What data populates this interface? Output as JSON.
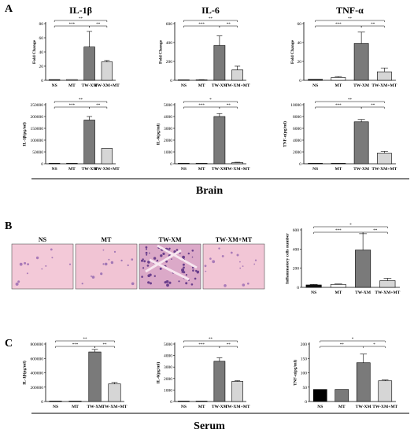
{
  "panels": {
    "A": "A",
    "B": "B",
    "C": "C"
  },
  "group_labels": {
    "brain": "Brain",
    "serum": "Serum"
  },
  "colors": {
    "NS": "#111111",
    "MT": "#ffffff",
    "TW-XM": "#7a7a7a",
    "TW-XM+MT": "#d6d6d6",
    "axis": "#000000"
  },
  "histology": {
    "labels": [
      "NS",
      "MT",
      "TW-XM",
      "TW-XM+MT"
    ],
    "scale_bar_note": "pink H&E stained tissue sections"
  },
  "chart_data": [
    {
      "id": "a-il1b-fold",
      "type": "bar",
      "title": "IL-1β",
      "ylabel": "Fold Change",
      "categories": [
        "NS",
        "MT",
        "TW-XM",
        "TW-XM+MT"
      ],
      "values": [
        1,
        1,
        47,
        26
      ],
      "errors": [
        0,
        0,
        22,
        2
      ],
      "ylim": [
        0,
        80
      ],
      "yticks": [
        "0",
        "20",
        "40",
        "60",
        "80"
      ],
      "ytick_values": [
        0,
        20,
        40,
        60,
        80
      ],
      "brackets": [
        {
          "from": 0,
          "to": 2,
          "label": "***"
        },
        {
          "from": 2,
          "to": 3,
          "label": "**"
        },
        {
          "from": 0,
          "to": 3,
          "label": "**"
        }
      ]
    },
    {
      "id": "a-il6-fold",
      "type": "bar",
      "title": "IL-6",
      "ylabel": "Fold Change",
      "categories": [
        "NS",
        "MT",
        "TW-XM",
        "TW-XM+MT"
      ],
      "values": [
        1,
        5,
        370,
        110
      ],
      "errors": [
        0,
        2,
        100,
        40
      ],
      "ylim": [
        0,
        600
      ],
      "yticks": [
        "0",
        "200",
        "400",
        "600"
      ],
      "ytick_values": [
        0,
        200,
        400,
        600
      ],
      "brackets": [
        {
          "from": 0,
          "to": 2,
          "label": "***"
        },
        {
          "from": 2,
          "to": 3,
          "label": "**"
        },
        {
          "from": 0,
          "to": 3,
          "label": "**"
        }
      ]
    },
    {
      "id": "a-tnfa-fold",
      "type": "bar",
      "title": "TNF-α",
      "ylabel": "Fold Change",
      "categories": [
        "NS",
        "MT",
        "TW-XM",
        "TW-XM+MT"
      ],
      "values": [
        1,
        3,
        39,
        9
      ],
      "errors": [
        0,
        1,
        12,
        4
      ],
      "ylim": [
        0,
        60
      ],
      "yticks": [
        "0",
        "20",
        "40",
        "60"
      ],
      "ytick_values": [
        0,
        20,
        40,
        60
      ],
      "brackets": [
        {
          "from": 0,
          "to": 2,
          "label": "***"
        },
        {
          "from": 2,
          "to": 3,
          "label": "**"
        },
        {
          "from": 0,
          "to": 3,
          "label": "**"
        }
      ]
    },
    {
      "id": "a-il1b-pg",
      "type": "bar",
      "ylabel": "IL-1β(pg/ml)",
      "categories": [
        "NS",
        "MT",
        "TW-XM",
        "TW-XM+MT"
      ],
      "values": [
        0,
        0,
        185000,
        65000
      ],
      "errors": [
        0,
        0,
        15000,
        0
      ],
      "ylim": [
        0,
        250000
      ],
      "yticks": [
        "0",
        "50000",
        "100000",
        "150000",
        "200000",
        "250000"
      ],
      "ytick_values": [
        0,
        50000,
        100000,
        150000,
        200000,
        250000
      ],
      "brackets": [
        {
          "from": 0,
          "to": 2,
          "label": "***"
        },
        {
          "from": 2,
          "to": 3,
          "label": "**"
        },
        {
          "from": 0,
          "to": 3,
          "label": "**"
        }
      ]
    },
    {
      "id": "a-il6-pg",
      "type": "bar",
      "ylabel": "IL-6(pg/ml)",
      "categories": [
        "NS",
        "MT",
        "TW-XM",
        "TW-XM+MT"
      ],
      "values": [
        0,
        0,
        4000,
        100
      ],
      "errors": [
        0,
        0,
        250,
        30
      ],
      "ylim": [
        0,
        5000
      ],
      "yticks": [
        "0",
        "1000",
        "2000",
        "3000",
        "4000",
        "5000"
      ],
      "ytick_values": [
        0,
        1000,
        2000,
        3000,
        4000,
        5000
      ],
      "brackets": [
        {
          "from": 0,
          "to": 2,
          "label": "***"
        },
        {
          "from": 2,
          "to": 3,
          "label": "**"
        },
        {
          "from": 0,
          "to": 3,
          "label": "*"
        }
      ]
    },
    {
      "id": "a-tnfa-pg",
      "type": "bar",
      "ylabel": "TNF-α(pg/ml)",
      "categories": [
        "NS",
        "MT",
        "TW-XM",
        "TW-XM+MT"
      ],
      "values": [
        0,
        0,
        7100,
        1800
      ],
      "errors": [
        0,
        0,
        400,
        300
      ],
      "ylim": [
        0,
        10000
      ],
      "yticks": [
        "0",
        "2000",
        "4000",
        "6000",
        "8000",
        "10000"
      ],
      "ytick_values": [
        0,
        2000,
        4000,
        6000,
        8000,
        10000
      ],
      "brackets": [
        {
          "from": 0,
          "to": 2,
          "label": "***"
        },
        {
          "from": 2,
          "to": 3,
          "label": "**"
        },
        {
          "from": 0,
          "to": 3,
          "label": "**"
        }
      ]
    },
    {
      "id": "b-cells",
      "type": "bar",
      "ylabel": "Inflammatory cells number",
      "categories": [
        "NS",
        "MT",
        "TW-XM",
        "TW-XM+MT"
      ],
      "values": [
        25,
        30,
        390,
        70
      ],
      "errors": [
        5,
        5,
        170,
        25
      ],
      "ylim": [
        0,
        600
      ],
      "yticks": [
        "0",
        "200",
        "400",
        "600"
      ],
      "ytick_values": [
        0,
        200,
        400,
        600
      ],
      "brackets": [
        {
          "from": 0,
          "to": 2,
          "label": "***"
        },
        {
          "from": 2,
          "to": 3,
          "label": "**"
        },
        {
          "from": 0,
          "to": 3,
          "label": "*"
        }
      ]
    },
    {
      "id": "c-il1b-pg",
      "type": "bar",
      "ylabel": "IL-1β(pg/ml)",
      "categories": [
        "NS",
        "MT",
        "TW-XM",
        "TW-XM+MT"
      ],
      "values": [
        0,
        0,
        690000,
        245000
      ],
      "errors": [
        0,
        0,
        35000,
        20000
      ],
      "ylim": [
        0,
        800000
      ],
      "yticks": [
        "0",
        "200000",
        "400000",
        "600000",
        "800000"
      ],
      "ytick_values": [
        0,
        200000,
        400000,
        600000,
        800000
      ],
      "brackets": [
        {
          "from": 0,
          "to": 2,
          "label": "***"
        },
        {
          "from": 2,
          "to": 3,
          "label": "**"
        },
        {
          "from": 0,
          "to": 3,
          "label": "**"
        }
      ]
    },
    {
      "id": "c-il6-pg",
      "type": "bar",
      "ylabel": "IL-6(pg/ml)",
      "categories": [
        "NS",
        "MT",
        "TW-XM",
        "TW-XM+MT"
      ],
      "values": [
        0,
        0,
        3500,
        1750
      ],
      "errors": [
        0,
        0,
        300,
        60
      ],
      "ylim": [
        0,
        5000
      ],
      "yticks": [
        "0",
        "1000",
        "2000",
        "3000",
        "4000",
        "5000"
      ],
      "ytick_values": [
        0,
        1000,
        2000,
        3000,
        4000,
        5000
      ],
      "brackets": [
        {
          "from": 0,
          "to": 2,
          "label": "***"
        },
        {
          "from": 2,
          "to": 3,
          "label": "**"
        },
        {
          "from": 0,
          "to": 3,
          "label": "**"
        }
      ]
    },
    {
      "id": "c-tnfa-pg",
      "type": "bar",
      "ylabel": "TNF-α(pg/ml)",
      "categories": [
        "NS",
        "MT",
        "TW-XM",
        "TW-XM+MT"
      ],
      "values": [
        42,
        42,
        135,
        72
      ],
      "errors": [
        0,
        0,
        30,
        3
      ],
      "ylim": [
        0,
        200
      ],
      "yticks": [
        "0",
        "50",
        "100",
        "150",
        "200"
      ],
      "ytick_values": [
        0,
        50,
        100,
        150,
        200
      ],
      "bar_fills": [
        "#000000",
        "#7a7a7a",
        "#7a7a7a",
        "#d6d6d6"
      ],
      "brackets": [
        {
          "from": 0,
          "to": 2,
          "label": "**"
        },
        {
          "from": 2,
          "to": 3,
          "label": "*"
        },
        {
          "from": 0,
          "to": 3,
          "label": "*"
        }
      ]
    }
  ]
}
